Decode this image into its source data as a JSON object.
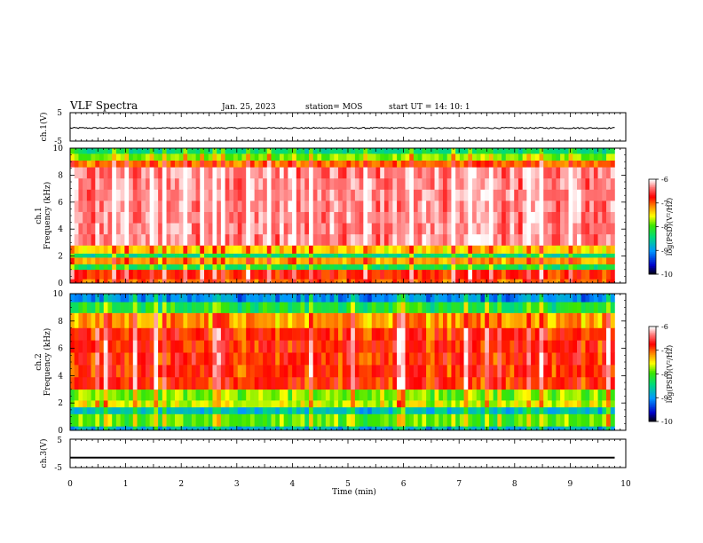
{
  "header": {
    "title": "VLF Spectra",
    "date": "Jan. 25, 2023",
    "station": "station= MOS",
    "start_ut": "start  UT =   14: 10: 1"
  },
  "chart_data": [
    {
      "type": "line",
      "panel": "ch1-waveform",
      "ylabel": "ch.1(V)",
      "yticks": [
        "5",
        "-5"
      ],
      "ylim": [
        -5,
        5
      ],
      "xlim": [
        0,
        10
      ],
      "series": [
        {
          "x": [
            0,
            9.8
          ],
          "y": [
            -0.4,
            -0.4
          ]
        }
      ]
    },
    {
      "type": "heatmap",
      "panel": "ch1-spectrogram",
      "ylabel_top": "ch.1",
      "ylabel": "Frequency (kHz)",
      "yticks": [
        "0",
        "2",
        "4",
        "6",
        "8",
        "10"
      ],
      "ylim": [
        0,
        10
      ],
      "xlim": [
        0,
        9.8
      ],
      "colorbar": {
        "label": "log(PSD)(V²/Hz)",
        "ticks": [
          "-6",
          "-7",
          "-8",
          "-9",
          "-10"
        ],
        "range": [
          -10,
          -6
        ]
      },
      "bands": [
        {
          "from": 0.0,
          "to": 0.3,
          "level": -7.0
        },
        {
          "from": 0.3,
          "to": 1.0,
          "level": -6.8
        },
        {
          "from": 1.0,
          "to": 1.4,
          "level": -8.2
        },
        {
          "from": 1.4,
          "to": 1.9,
          "level": -7.2
        },
        {
          "from": 1.9,
          "to": 2.2,
          "level": -8.4
        },
        {
          "from": 2.2,
          "to": 2.8,
          "level": -7.4
        },
        {
          "from": 2.8,
          "to": 8.6,
          "level": -6.3
        },
        {
          "from": 8.6,
          "to": 9.1,
          "level": -7.0
        },
        {
          "from": 9.1,
          "to": 9.6,
          "level": -7.8
        },
        {
          "from": 9.6,
          "to": 10.0,
          "level": -8.4
        }
      ]
    },
    {
      "type": "heatmap",
      "panel": "ch2-spectrogram",
      "ylabel_top": "ch.2",
      "ylabel": "Frequency (kHz)",
      "yticks": [
        "0",
        "2",
        "4",
        "6",
        "8",
        "10"
      ],
      "ylim": [
        0,
        10
      ],
      "xlim": [
        0,
        9.8
      ],
      "colorbar": {
        "label": "log(PSD)(V²/Hz)",
        "ticks": [
          "-6",
          "-7",
          "-8",
          "-9",
          "-10"
        ],
        "range": [
          -10,
          -6
        ]
      },
      "bands": [
        {
          "from": 0.0,
          "to": 0.3,
          "level": -8.8
        },
        {
          "from": 0.3,
          "to": 1.2,
          "level": -7.9
        },
        {
          "from": 1.2,
          "to": 1.7,
          "level": -8.7
        },
        {
          "from": 1.7,
          "to": 2.2,
          "level": -7.6
        },
        {
          "from": 2.2,
          "to": 3.0,
          "level": -7.8
        },
        {
          "from": 3.0,
          "to": 7.5,
          "level": -6.8
        },
        {
          "from": 7.5,
          "to": 8.6,
          "level": -7.2
        },
        {
          "from": 8.6,
          "to": 9.4,
          "level": -8.2
        },
        {
          "from": 9.4,
          "to": 10.0,
          "level": -9.0
        }
      ]
    },
    {
      "type": "line",
      "panel": "ch3-waveform",
      "ylabel": "ch.3(V)",
      "yticks": [
        "5",
        "-5"
      ],
      "ylim": [
        -5,
        5
      ],
      "xlim": [
        0,
        10
      ],
      "xlabel": "Time (min)",
      "xticks": [
        "0",
        "1",
        "2",
        "3",
        "4",
        "5",
        "6",
        "7",
        "8",
        "9",
        "10"
      ],
      "series": [
        {
          "x": [
            0,
            9.8
          ],
          "y": [
            -1.5,
            -1.5
          ]
        }
      ]
    }
  ]
}
